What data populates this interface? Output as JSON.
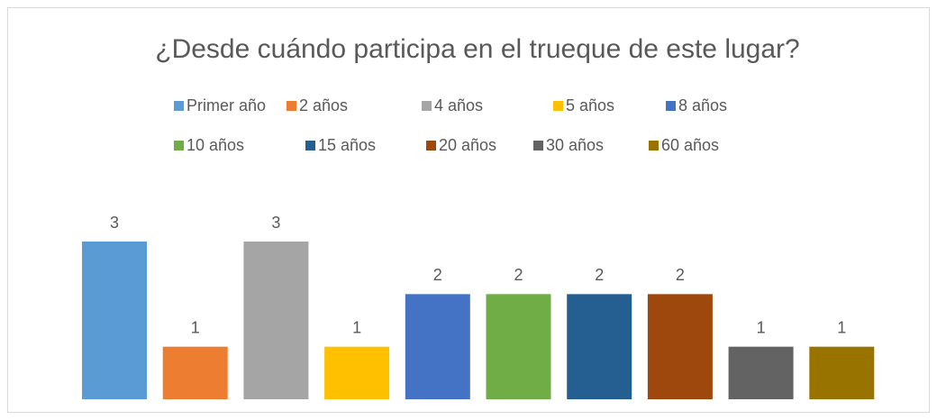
{
  "chart_data": {
    "type": "bar",
    "title": "¿Desde cuándo participa en el trueque de este lugar?",
    "categories": [
      null
    ],
    "series": [
      {
        "name": "Primer año",
        "color": "#5b9bd5",
        "values": [
          3
        ]
      },
      {
        "name": "2 años",
        "color": "#ed7d31",
        "values": [
          1
        ]
      },
      {
        "name": "4 años",
        "color": "#a5a5a5",
        "values": [
          3
        ]
      },
      {
        "name": "5 años",
        "color": "#ffc000",
        "values": [
          1
        ]
      },
      {
        "name": "8 años",
        "color": "#4472c4",
        "values": [
          2
        ]
      },
      {
        "name": "10 años",
        "color": "#70ad47",
        "values": [
          2
        ]
      },
      {
        "name": "15 años",
        "color": "#255e91",
        "values": [
          2
        ]
      },
      {
        "name": "20 años",
        "color": "#9e480e",
        "values": [
          2
        ]
      },
      {
        "name": "30 años",
        "color": "#636363",
        "values": [
          1
        ]
      },
      {
        "name": "60 años",
        "color": "#997300",
        "values": [
          1
        ]
      }
    ],
    "legend": "top"
  }
}
